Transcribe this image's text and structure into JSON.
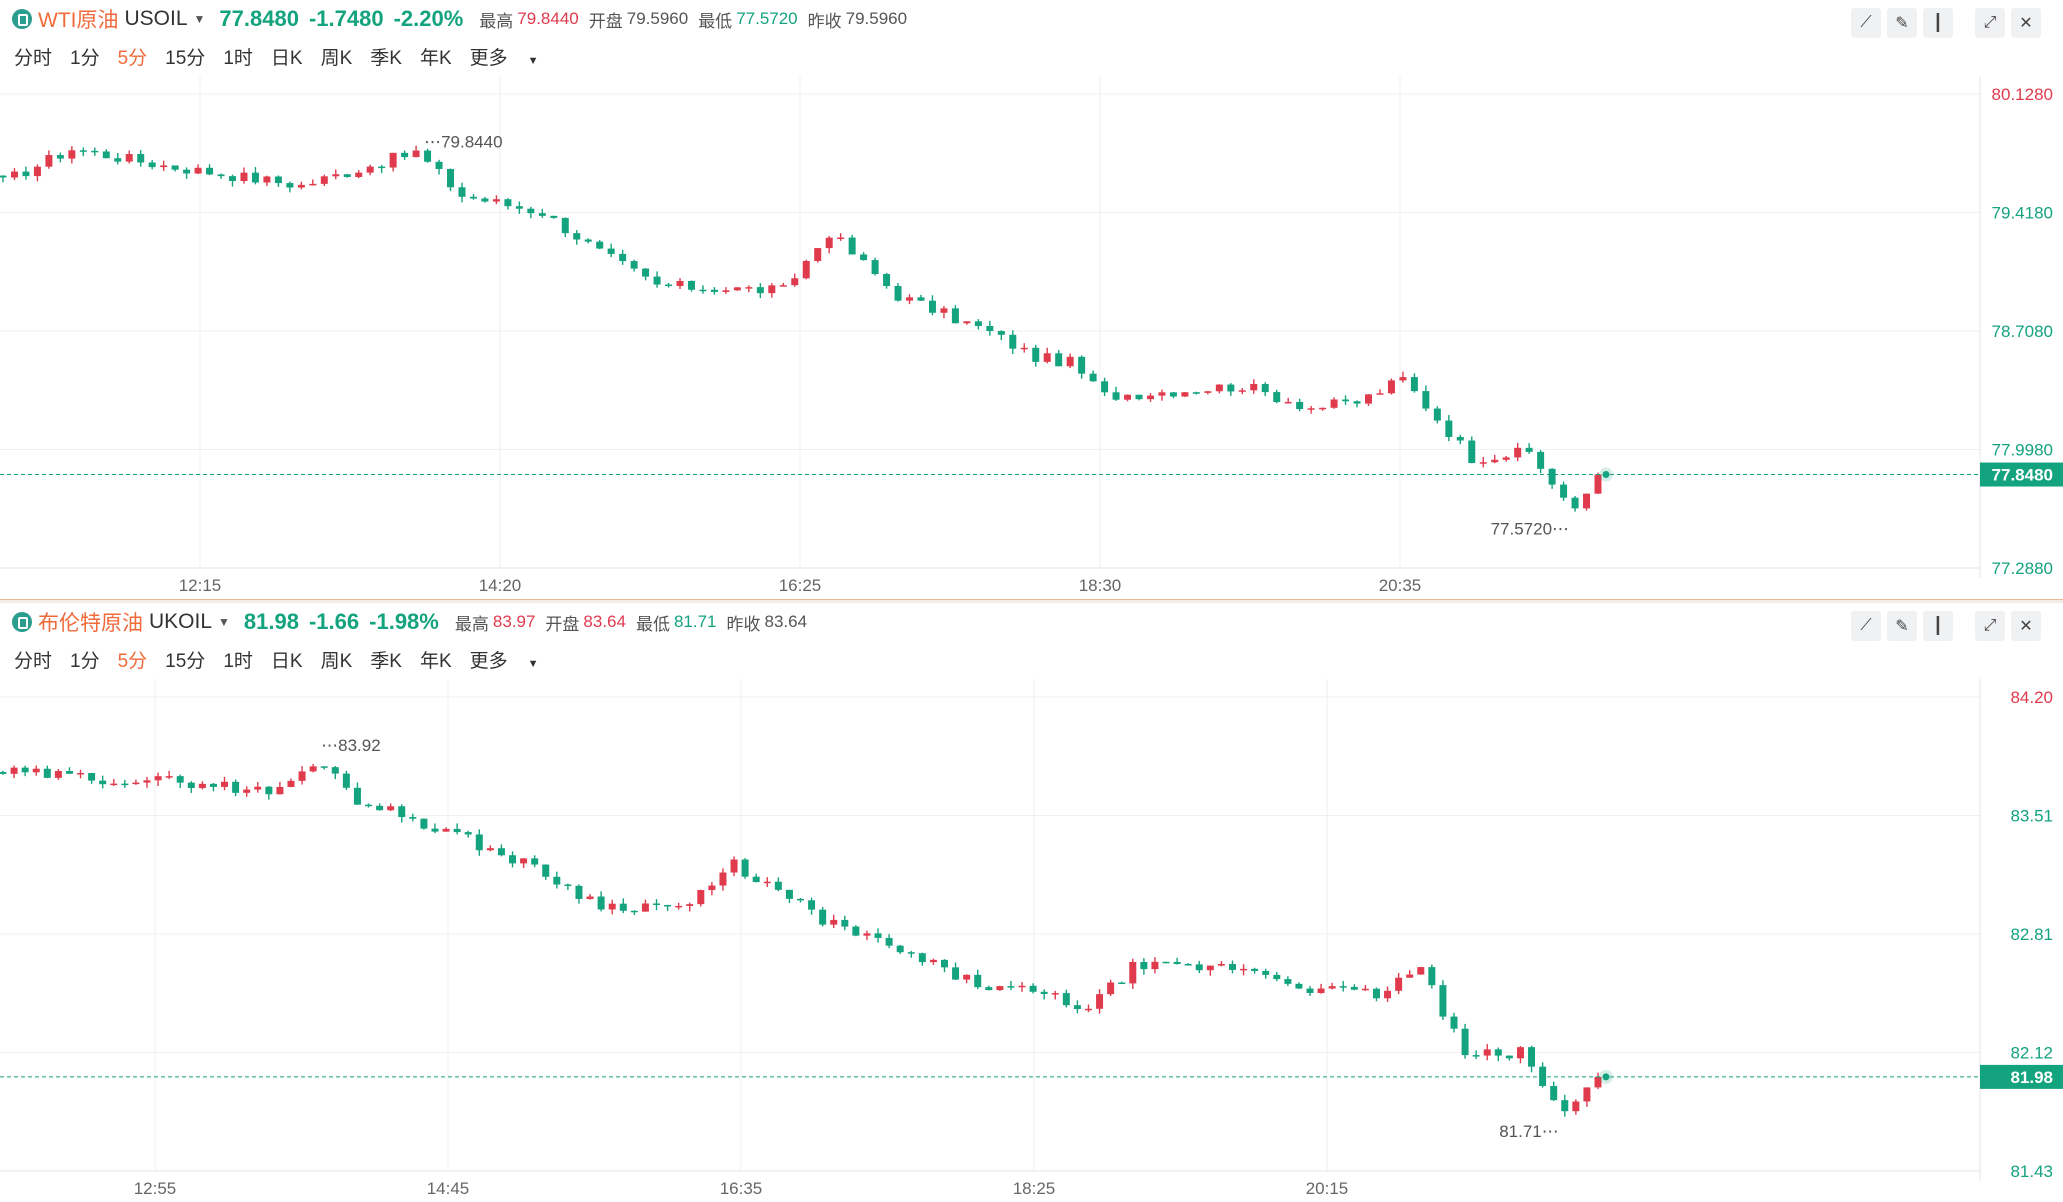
{
  "colors": {
    "up": "#e03b4d",
    "down": "#14a37f",
    "accent": "#f06a3a",
    "grid": "#eef0f2"
  },
  "panels": [
    {
      "name": "WTI原油",
      "symbol": "USOIL",
      "price": "77.8480",
      "change": "-1.7480",
      "change_pct": "-2.20%",
      "stats": [
        {
          "label": "最高",
          "value": "79.8440",
          "tone": "up"
        },
        {
          "label": "开盘",
          "value": "79.5960",
          "tone": "neutral"
        },
        {
          "label": "最低",
          "value": "77.5720",
          "tone": "down"
        },
        {
          "label": "昨收",
          "value": "79.5960",
          "tone": "neutral"
        }
      ],
      "periods": [
        "分时",
        "1分",
        "5分",
        "15分",
        "1时",
        "日K",
        "周K",
        "季K",
        "年K",
        "更多"
      ],
      "active_period": "5分",
      "toolbar": [
        "line-chart-icon",
        "pencil-icon",
        "candlestick-icon",
        "expand-icon",
        "close-icon"
      ]
    },
    {
      "name": "布伦特原油",
      "symbol": "UKOIL",
      "price": "81.98",
      "change": "-1.66",
      "change_pct": "-1.98%",
      "stats": [
        {
          "label": "最高",
          "value": "83.97",
          "tone": "up"
        },
        {
          "label": "开盘",
          "value": "83.64",
          "tone": "up"
        },
        {
          "label": "最低",
          "value": "81.71",
          "tone": "down"
        },
        {
          "label": "昨收",
          "value": "83.64",
          "tone": "neutral"
        }
      ],
      "periods": [
        "分时",
        "1分",
        "5分",
        "15分",
        "1时",
        "日K",
        "周K",
        "季K",
        "年K",
        "更多"
      ],
      "active_period": "5分",
      "toolbar": [
        "line-chart-icon",
        "pencil-icon",
        "candlestick-icon",
        "expand-icon",
        "close-icon"
      ]
    }
  ],
  "chart_data": [
    {
      "type": "candlestick",
      "symbol": "USOIL",
      "interval": "5分",
      "y_ticks": [
        "80.1280",
        "79.4180",
        "78.7080",
        "77.9980",
        "77.2880"
      ],
      "ylim": [
        77.288,
        80.128
      ],
      "x_ticks": [
        "12:15",
        "14:20",
        "16:25",
        "18:30",
        "20:35"
      ],
      "last_price": 77.848,
      "last_price_label": "77.8480",
      "high_mark": {
        "label": "79.8440",
        "value": 79.844
      },
      "low_mark": {
        "label": "77.5720",
        "value": 77.572
      },
      "grid": true,
      "anchors": [
        {
          "i": 0,
          "v": 79.6
        },
        {
          "i": 6,
          "v": 79.8
        },
        {
          "i": 14,
          "v": 79.7
        },
        {
          "i": 26,
          "v": 79.58
        },
        {
          "i": 36,
          "v": 79.78
        },
        {
          "i": 40,
          "v": 79.52
        },
        {
          "i": 47,
          "v": 79.42
        },
        {
          "i": 52,
          "v": 79.18
        },
        {
          "i": 57,
          "v": 78.98
        },
        {
          "i": 64,
          "v": 78.96
        },
        {
          "i": 68,
          "v": 78.95
        },
        {
          "i": 72,
          "v": 79.3
        },
        {
          "i": 78,
          "v": 78.92
        },
        {
          "i": 86,
          "v": 78.7
        },
        {
          "i": 90,
          "v": 78.55
        },
        {
          "i": 93,
          "v": 78.52
        },
        {
          "i": 96,
          "v": 78.32
        },
        {
          "i": 108,
          "v": 78.38
        },
        {
          "i": 114,
          "v": 78.25
        },
        {
          "i": 118,
          "v": 78.28
        },
        {
          "i": 122,
          "v": 78.42
        },
        {
          "i": 128,
          "v": 77.95
        },
        {
          "i": 133,
          "v": 77.98
        },
        {
          "i": 137,
          "v": 77.62
        },
        {
          "i": 139,
          "v": 77.85
        }
      ]
    },
    {
      "type": "candlestick",
      "symbol": "UKOIL",
      "interval": "5分",
      "y_ticks": [
        "84.20",
        "83.51",
        "82.81",
        "82.12",
        "81.43"
      ],
      "ylim": [
        81.43,
        84.2
      ],
      "x_ticks": [
        "12:55",
        "14:45",
        "16:35",
        "18:25",
        "20:15"
      ],
      "last_price": 81.98,
      "last_price_label": "81.98",
      "high_mark": {
        "label": "83.92",
        "value": 83.92
      },
      "low_mark": {
        "label": "81.71",
        "value": 81.71
      },
      "grid": true,
      "anchors": [
        {
          "i": 0,
          "v": 83.76
        },
        {
          "i": 10,
          "v": 83.72
        },
        {
          "i": 18,
          "v": 83.7
        },
        {
          "i": 24,
          "v": 83.64
        },
        {
          "i": 29,
          "v": 83.82
        },
        {
          "i": 32,
          "v": 83.6
        },
        {
          "i": 40,
          "v": 83.42
        },
        {
          "i": 48,
          "v": 83.2
        },
        {
          "i": 54,
          "v": 82.98
        },
        {
          "i": 62,
          "v": 82.98
        },
        {
          "i": 66,
          "v": 83.22
        },
        {
          "i": 74,
          "v": 82.9
        },
        {
          "i": 80,
          "v": 82.74
        },
        {
          "i": 88,
          "v": 82.52
        },
        {
          "i": 94,
          "v": 82.46
        },
        {
          "i": 98,
          "v": 82.38
        },
        {
          "i": 102,
          "v": 82.62
        },
        {
          "i": 112,
          "v": 82.62
        },
        {
          "i": 118,
          "v": 82.5
        },
        {
          "i": 124,
          "v": 82.46
        },
        {
          "i": 128,
          "v": 82.62
        },
        {
          "i": 132,
          "v": 82.1
        },
        {
          "i": 137,
          "v": 82.12
        },
        {
          "i": 141,
          "v": 81.76
        },
        {
          "i": 144,
          "v": 81.98
        }
      ]
    }
  ]
}
